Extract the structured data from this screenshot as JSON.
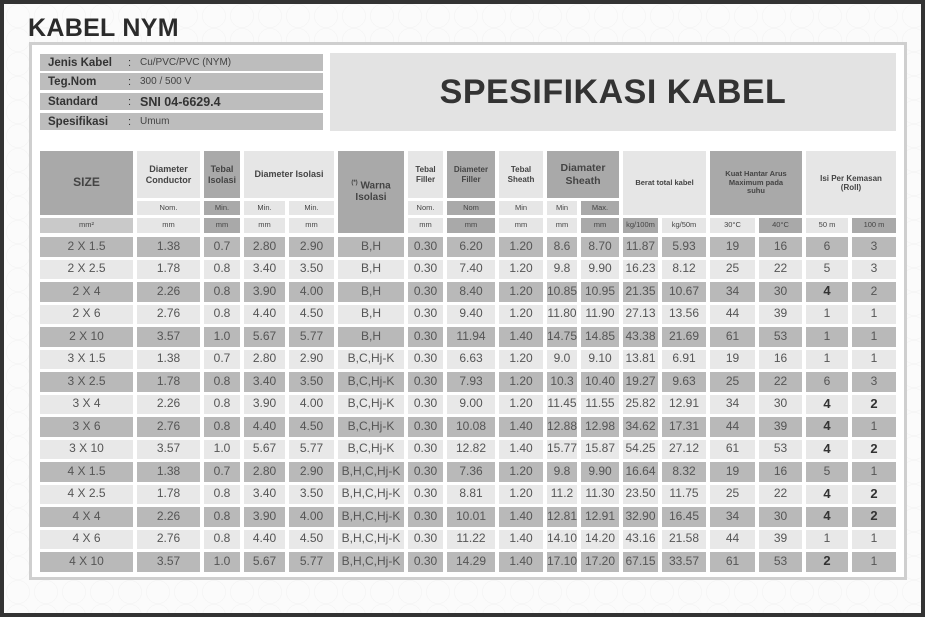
{
  "title": "KABEL NYM",
  "info": [
    {
      "label": "Jenis Kabel",
      "value": "Cu/PVC/PVC (NYM)"
    },
    {
      "label": "Teg.Nom",
      "value": "300 / 500 V"
    },
    {
      "label": "Standard",
      "value": "SNI 04-6629.4"
    },
    {
      "label": "Spesifikasi",
      "value": "Umum"
    }
  ],
  "colon": ":",
  "spec_title": "SPESIFIKASI KABEL",
  "headers": {
    "size": "SIZE",
    "dia_conductor": "Diameter Conductor",
    "tebal_isolasi": "Tebal Isolasi",
    "dia_isolasi": "Diameter Isolasi",
    "warna_note": "(*)",
    "warna": "Warna Isolasi",
    "tebal_filler": "Tebal Filler",
    "dia_filler": "Diameter Filler",
    "tebal_sheath": "Tebal Sheath",
    "dia_sheath": "Diamater Sheath",
    "berat": "Berat total kabel",
    "kuat": "Kuat Hantar Arus Maximum pada suhu",
    "isi": "Isi Per Kemasan (Roll)"
  },
  "subheaders": [
    "Nom.",
    "Min.",
    "Min.",
    "Min.",
    "Nom.",
    "Nom",
    "Min",
    "Min",
    "Max."
  ],
  "units": [
    "mm²",
    "mm",
    "mm",
    "mm",
    "mm",
    "mm",
    "mm",
    "mm",
    "mm",
    "mm",
    "kg/100m",
    "kg/50m",
    "30°C",
    "40°C",
    "50 m",
    "100 m"
  ],
  "rows": [
    [
      "2 X 1.5",
      "1.38",
      "0.7",
      "2.80",
      "2.90",
      "B,H",
      "0.30",
      "6.20",
      "1.20",
      "8.6",
      "8.70",
      "11.87",
      "5.93",
      "19",
      "16",
      "6",
      "3"
    ],
    [
      "2 X 2.5",
      "1.78",
      "0.8",
      "3.40",
      "3.50",
      "B,H",
      "0.30",
      "7.40",
      "1.20",
      "9.8",
      "9.90",
      "16.23",
      "8.12",
      "25",
      "22",
      "5",
      "3"
    ],
    [
      "2 X 4",
      "2.26",
      "0.8",
      "3.90",
      "4.00",
      "B,H",
      "0.30",
      "8.40",
      "1.20",
      "10.85",
      "10.95",
      "21.35",
      "10.67",
      "34",
      "30",
      "4",
      "2"
    ],
    [
      "2 X 6",
      "2.76",
      "0.8",
      "4.40",
      "4.50",
      "B,H",
      "0.30",
      "9.40",
      "1.20",
      "11.80",
      "11.90",
      "27.13",
      "13.56",
      "44",
      "39",
      "1",
      "1"
    ],
    [
      "2 X 10",
      "3.57",
      "1.0",
      "5.67",
      "5.77",
      "B,H",
      "0.30",
      "11.94",
      "1.40",
      "14.75",
      "14.85",
      "43.38",
      "21.69",
      "61",
      "53",
      "1",
      "1"
    ],
    [
      "3 X 1.5",
      "1.38",
      "0.7",
      "2.80",
      "2.90",
      "B,C,Hj-K",
      "0.30",
      "6.63",
      "1.20",
      "9.0",
      "9.10",
      "13.81",
      "6.91",
      "19",
      "16",
      "1",
      "1"
    ],
    [
      "3 X 2.5",
      "1.78",
      "0.8",
      "3.40",
      "3.50",
      "B,C,Hj-K",
      "0.30",
      "7.93",
      "1.20",
      "10.3",
      "10.40",
      "19.27",
      "9.63",
      "25",
      "22",
      "6",
      "3"
    ],
    [
      "3 X 4",
      "2.26",
      "0.8",
      "3.90",
      "4.00",
      "B,C,Hj-K",
      "0.30",
      "9.00",
      "1.20",
      "11.45",
      "11.55",
      "25.82",
      "12.91",
      "34",
      "30",
      "4",
      "2"
    ],
    [
      "3 X 6",
      "2.76",
      "0.8",
      "4.40",
      "4.50",
      "B,C,Hj-K",
      "0.30",
      "10.08",
      "1.40",
      "12.88",
      "12.98",
      "34.62",
      "17.31",
      "44",
      "39",
      "4",
      "1"
    ],
    [
      "3 X  10",
      "3.57",
      "1.0",
      "5.67",
      "5.77",
      "B,C,Hj-K",
      "0.30",
      "12.82",
      "1.40",
      "15.77",
      "15.87",
      "54.25",
      "27.12",
      "61",
      "53",
      "4",
      "2"
    ],
    [
      "4 X 1.5",
      "1.38",
      "0.7",
      "2.80",
      "2.90",
      "B,H,C,Hj-K",
      "0.30",
      "7.36",
      "1.20",
      "9.8",
      "9.90",
      "16.64",
      "8.32",
      "19",
      "16",
      "5",
      "1"
    ],
    [
      "4 X 2.5",
      "1.78",
      "0.8",
      "3.40",
      "3.50",
      "B,H,C,Hj-K",
      "0.30",
      "8.81",
      "1.20",
      "11.2",
      "11.30",
      "23.50",
      "11.75",
      "25",
      "22",
      "4",
      "2"
    ],
    [
      "4 X 4",
      "2.26",
      "0.8",
      "3.90",
      "4.00",
      "B,H,C,Hj-K",
      "0.30",
      "10.01",
      "1.40",
      "12.81",
      "12.91",
      "32.90",
      "16.45",
      "34",
      "30",
      "4",
      "2"
    ],
    [
      "4 X 6",
      "2.76",
      "0.8",
      "4.40",
      "4.50",
      "B,H,C,Hj-K",
      "0.30",
      "11.22",
      "1.40",
      "14.10",
      "14.20",
      "43.16",
      "21.58",
      "44",
      "39",
      "1",
      "1"
    ],
    [
      "4 X 10",
      "3.57",
      "1.0",
      "5.67",
      "5.77",
      "B,H,C,Hj-K",
      "0.30",
      "14.29",
      "1.40",
      "17.10",
      "17.20",
      "67.15",
      "33.57",
      "61",
      "53",
      "2",
      "1"
    ]
  ]
}
